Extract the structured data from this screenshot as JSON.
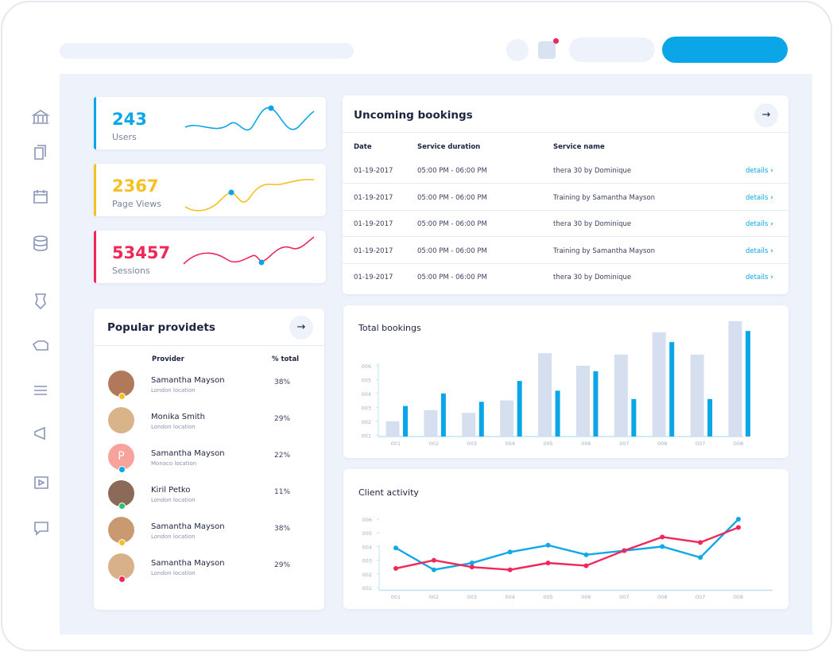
{
  "stats": [
    {
      "value": 243,
      "label": "Users"
    },
    {
      "value": 2367,
      "label": "Page Views"
    },
    {
      "value": 53457,
      "label": "Sessions"
    }
  ],
  "bookings": {
    "title": "Uncoming bookings",
    "columns": [
      "Date",
      "Service duration",
      "Service name"
    ],
    "rows": [
      [
        "01-19-2017",
        "05:00 PM - 06:00 PM",
        "thera 30 by Dominique",
        "details"
      ],
      [
        "01-19-2017",
        "05:00 PM - 06:00 PM",
        "Training by Samantha Mayson",
        "details"
      ],
      [
        "01-19-2017",
        "05:00 PM - 06:00 PM",
        "thera 30 by Dominique",
        "details"
      ],
      [
        "01-19-2017",
        "05:00 PM - 06:00 PM",
        "Training by Samantha Mayson",
        "details"
      ],
      [
        "01-19-2017",
        "05:00 PM - 06:00 PM",
        "thera 30 by Dominique",
        "details"
      ]
    ]
  },
  "providers": {
    "title": "Popular providets",
    "columns": [
      "Provider",
      "% total"
    ],
    "rows": [
      {
        "name": "Samantha Mayson",
        "location": "London location",
        "share": "38%"
      },
      {
        "name": "Monika Smith",
        "location": "London location",
        "share": "29%"
      },
      {
        "name": "Samantha Mayson",
        "location": "Monaco location",
        "share": "22%",
        "avatar_letter": "P"
      },
      {
        "name": "Kiril Petko",
        "location": "London location",
        "share": "11%"
      },
      {
        "name": "Samantha Mayson",
        "location": "London location",
        "share": "38%"
      },
      {
        "name": "Samantha Mayson",
        "location": "London location",
        "share": "29%"
      }
    ]
  },
  "chart_data": [
    {
      "type": "bar",
      "title": "Total bookings",
      "categories": [
        "001",
        "002",
        "003",
        "004",
        "005",
        "006",
        "007",
        "008",
        "007",
        "008"
      ],
      "series": [
        {
          "color": "#d6dff0",
          "values": [
            2.0,
            2.8,
            2.6,
            3.5,
            6.9,
            6.0,
            6.8,
            8.4,
            6.8,
            9.2
          ]
        },
        {
          "color": "#0aa6e8",
          "values": [
            3.1,
            4.0,
            3.4,
            4.9,
            4.2,
            5.6,
            3.6,
            7.7,
            3.6,
            8.5
          ]
        }
      ],
      "ylim": [
        0.9,
        9.6
      ],
      "yticks": [
        {
          "value": 1,
          "label": "001"
        },
        {
          "value": 2,
          "label": "002"
        },
        {
          "value": 3,
          "label": "003"
        },
        {
          "value": 4,
          "label": "004"
        },
        {
          "value": 5,
          "label": "005"
        },
        {
          "value": 6,
          "label": "006"
        }
      ]
    },
    {
      "type": "line",
      "title": "Client activity",
      "categories": [
        "001",
        "002",
        "003",
        "004",
        "005",
        "006",
        "007",
        "008",
        "007",
        "008"
      ],
      "series": [
        {
          "color": "#10a8e8",
          "values": [
            3.9,
            2.3,
            2.8,
            3.6,
            4.1,
            3.4,
            3.7,
            4.0,
            3.2,
            6.0
          ]
        },
        {
          "color": "#f0285a",
          "values": [
            2.4,
            3.0,
            2.5,
            2.3,
            2.8,
            2.6,
            3.7,
            4.7,
            4.3,
            5.4
          ]
        }
      ],
      "ylim": [
        0.8,
        7.6
      ],
      "yticks": [
        {
          "value": 1,
          "label": "001"
        },
        {
          "value": 2,
          "label": "002"
        },
        {
          "value": 3,
          "label": "003"
        },
        {
          "value": 4,
          "label": "004"
        },
        {
          "value": 5,
          "label": "005"
        },
        {
          "value": 6,
          "label": "006"
        }
      ]
    }
  ]
}
